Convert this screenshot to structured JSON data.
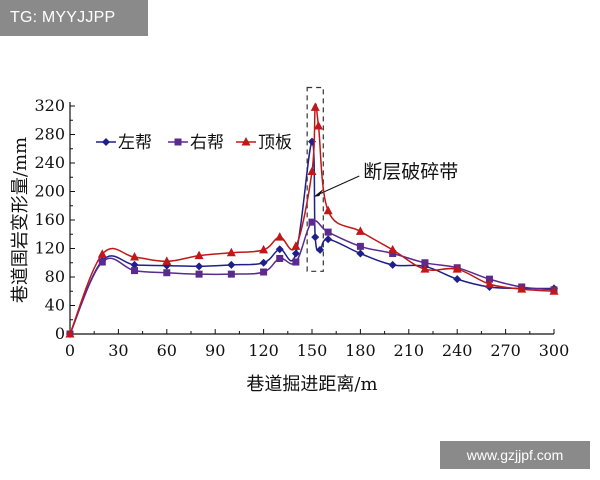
{
  "watermark_top": "TG: MYYJJPP",
  "watermark_bottom": "www.gzjjpf.com",
  "chart_data": {
    "type": "line",
    "xlabel": "巷道掘进距离/m",
    "ylabel": "巷道围岩变形量/mm",
    "xlim": [
      0,
      300
    ],
    "ylim": [
      0,
      320
    ],
    "xticks": [
      0,
      30,
      60,
      90,
      120,
      150,
      180,
      210,
      240,
      270,
      300
    ],
    "yticks": [
      0,
      40,
      80,
      120,
      160,
      200,
      240,
      280,
      320
    ],
    "grid": false,
    "legend_position": "top-left",
    "annotation": {
      "text": "断层破碎带",
      "x_range": [
        147,
        157
      ],
      "y_range": [
        88,
        346
      ]
    },
    "series": [
      {
        "name": "左帮",
        "color": "#1f1f8a",
        "marker": "diamond",
        "x": [
          0,
          20,
          40,
          60,
          80,
          100,
          120,
          130,
          140,
          150,
          152,
          155,
          160,
          180,
          200,
          220,
          240,
          260,
          280,
          300
        ],
        "y": [
          0,
          103,
          97,
          96,
          95,
          97,
          100,
          119,
          113,
          270,
          136,
          118,
          133,
          113,
          97,
          95,
          77,
          66,
          64,
          64
        ]
      },
      {
        "name": "右帮",
        "color": "#5a2a8c",
        "marker": "square",
        "x": [
          0,
          20,
          40,
          60,
          80,
          100,
          120,
          130,
          140,
          150,
          160,
          180,
          200,
          220,
          240,
          260,
          280,
          300
        ],
        "y": [
          0,
          101,
          89,
          86,
          84,
          84,
          87,
          106,
          101,
          157,
          143,
          123,
          113,
          100,
          93,
          77,
          66,
          62
        ]
      },
      {
        "name": "顶板",
        "color": "#c01818",
        "marker": "triangle",
        "x": [
          0,
          20,
          40,
          60,
          80,
          100,
          120,
          130,
          140,
          150,
          152,
          154,
          160,
          180,
          200,
          220,
          240,
          260,
          280,
          300
        ],
        "y": [
          0,
          112,
          108,
          102,
          110,
          114,
          118,
          136,
          123,
          228,
          318,
          292,
          173,
          144,
          118,
          91,
          91,
          70,
          63,
          60
        ]
      }
    ]
  }
}
